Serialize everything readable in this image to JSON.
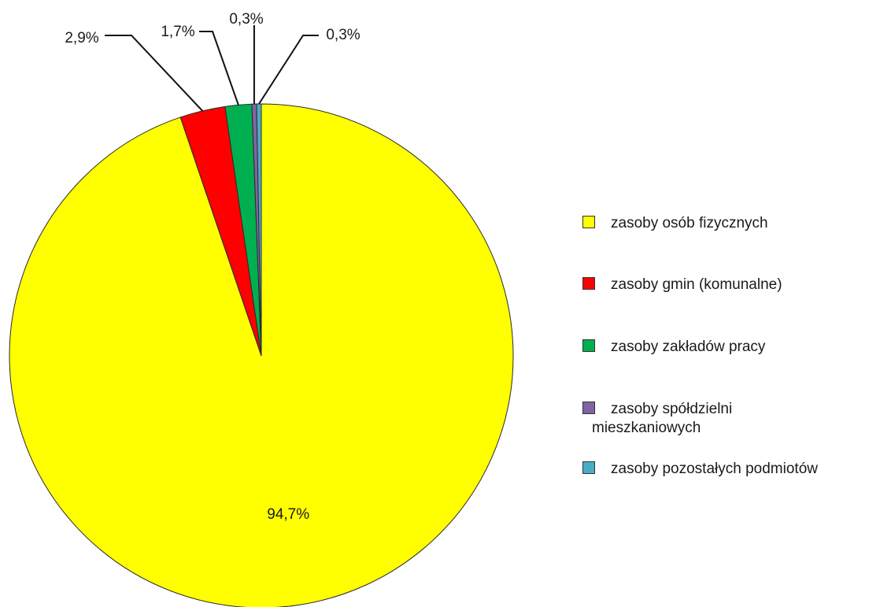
{
  "chart_data": {
    "type": "pie",
    "title": "",
    "slices": [
      {
        "name": "zasoby osób fizycznych",
        "value": 94.7,
        "label": "94,7%",
        "color": "#ffff00"
      },
      {
        "name": "zasoby gmin (komunalne)",
        "value": 2.9,
        "label": "2,9%",
        "color": "#ff0000"
      },
      {
        "name": "zasoby zakładów pracy",
        "value": 1.7,
        "label": "1,7%",
        "color": "#00b050"
      },
      {
        "name": "zasoby spółdzielni mieszkaniowych",
        "value": 0.3,
        "label": "0,3%",
        "color": "#8064a2"
      },
      {
        "name": "zasoby pozostałych podmiotów",
        "value": 0.3,
        "label": "0,3%",
        "color": "#4bacc6"
      }
    ],
    "legend": {
      "position": "right",
      "items": [
        {
          "line1": "zasoby osób fizycznych",
          "line2": ""
        },
        {
          "line1": "zasoby gmin (komunalne)",
          "line2": ""
        },
        {
          "line1": "zasoby zakładów pracy",
          "line2": ""
        },
        {
          "line1": "zasoby spółdzielni",
          "line2": "mieszkaniowych"
        },
        {
          "line1": "zasoby pozostałych podmiotów",
          "line2": ""
        }
      ]
    }
  }
}
